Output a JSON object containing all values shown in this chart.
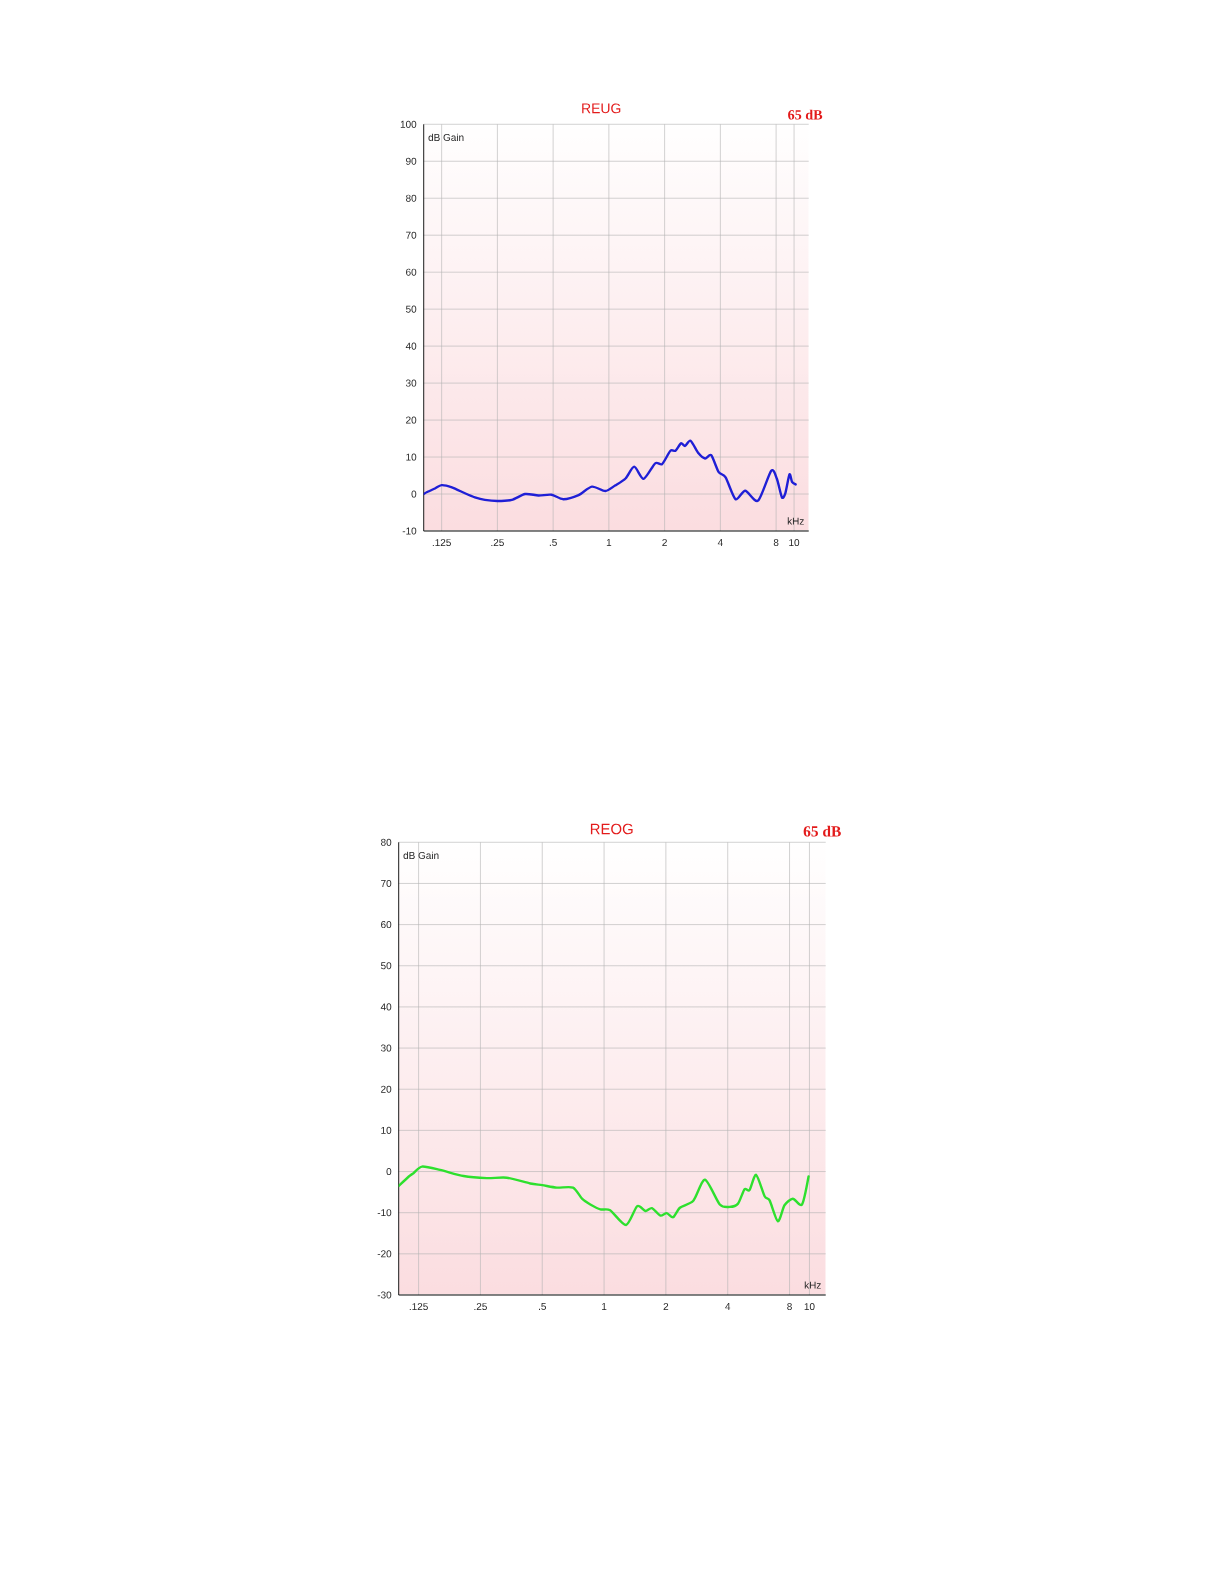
{
  "chart_data": [
    {
      "type": "line",
      "title": "REUG",
      "xlabel": "kHz",
      "ylabel": "dB Gain",
      "annotations": [
        "65 dB"
      ],
      "log": "x",
      "xlim": [
        0.1,
        12
      ],
      "ylim": [
        -10,
        100
      ],
      "xticks": [
        {
          "value": 0.125,
          "label": ".125"
        },
        {
          "value": 0.25,
          "label": ".25"
        },
        {
          "value": 0.5,
          "label": ".5"
        },
        1,
        2,
        4,
        8,
        10
      ],
      "yticks": [
        -10,
        0,
        10,
        20,
        30,
        40,
        50,
        60,
        70,
        80,
        90,
        100
      ],
      "grid": true,
      "series": [
        {
          "color": "#1f1fd6",
          "x": [
            0.1,
            0.105,
            0.115,
            0.125,
            0.142,
            0.167,
            0.189,
            0.214,
            0.25,
            0.299,
            0.353,
            0.417,
            0.49,
            0.567,
            0.686,
            0.81,
            0.957,
            1.08,
            1.23,
            1.37,
            1.54,
            1.78,
            1.94,
            2.15,
            2.29,
            2.45,
            2.58,
            2.76,
            3.05,
            3.31,
            3.57,
            3.91,
            4.27,
            4.83,
            5.45,
            6.39,
            7.53,
            8.07,
            8.6,
            8.97,
            9.45,
            9.75,
            10.2
          ],
          "values": [
            0,
            0.6,
            1.5,
            2.4,
            1.8,
            0.2,
            -0.9,
            -1.6,
            -1.9,
            -1.6,
            0,
            -0.4,
            -0.2,
            -1.4,
            -0.3,
            2,
            0.8,
            2.3,
            4.2,
            7.4,
            4.1,
            8.3,
            8.1,
            11.7,
            11.7,
            13.7,
            13,
            14.4,
            11,
            9.6,
            10.5,
            6,
            4.5,
            -1.4,
            0.9,
            -1.8,
            6.3,
            4.2,
            -0.9,
            0.2,
            5.3,
            3.3,
            2.6
          ]
        }
      ]
    },
    {
      "type": "line",
      "title": "REOG",
      "xlabel": "kHz",
      "ylabel": "dB Gain",
      "annotations": [
        "65 dB"
      ],
      "log": "x",
      "xlim": [
        0.1,
        12
      ],
      "ylim": [
        -30,
        80
      ],
      "xticks": [
        {
          "value": 0.125,
          "label": ".125"
        },
        {
          "value": 0.25,
          "label": ".25"
        },
        {
          "value": 0.5,
          "label": ".5"
        },
        1,
        2,
        4,
        8,
        10
      ],
      "yticks": [
        -30,
        -20,
        -10,
        0,
        10,
        20,
        30,
        40,
        50,
        60,
        70,
        80
      ],
      "grid": true,
      "series": [
        {
          "color": "#2ee02e",
          "x": [
            0.1,
            0.112,
            0.118,
            0.13,
            0.159,
            0.207,
            0.269,
            0.336,
            0.437,
            0.5,
            0.589,
            0.706,
            0.781,
            0.857,
            0.96,
            1.07,
            1.28,
            1.45,
            1.59,
            1.71,
            1.88,
            2.02,
            2.17,
            2.34,
            2.72,
            3.1,
            3.66,
            4.09,
            4.49,
            4.83,
            5.11,
            5.5,
            6.05,
            6.4,
            7.02,
            7.56,
            8.3,
            9.2,
            9.9
          ],
          "values": [
            -3.5,
            -1.2,
            -0.4,
            1.2,
            0.4,
            -1.1,
            -1.6,
            -1.5,
            -2.9,
            -3.3,
            -3.9,
            -3.9,
            -6.6,
            -8,
            -9.2,
            -9.4,
            -13,
            -8.4,
            -9.6,
            -8.9,
            -10.7,
            -10.1,
            -11.1,
            -8.8,
            -7.1,
            -2,
            -8,
            -8.6,
            -7.8,
            -4.3,
            -4.5,
            -0.8,
            -6,
            -7,
            -12.1,
            -8.2,
            -6.6,
            -8,
            -1.2
          ]
        }
      ]
    }
  ]
}
